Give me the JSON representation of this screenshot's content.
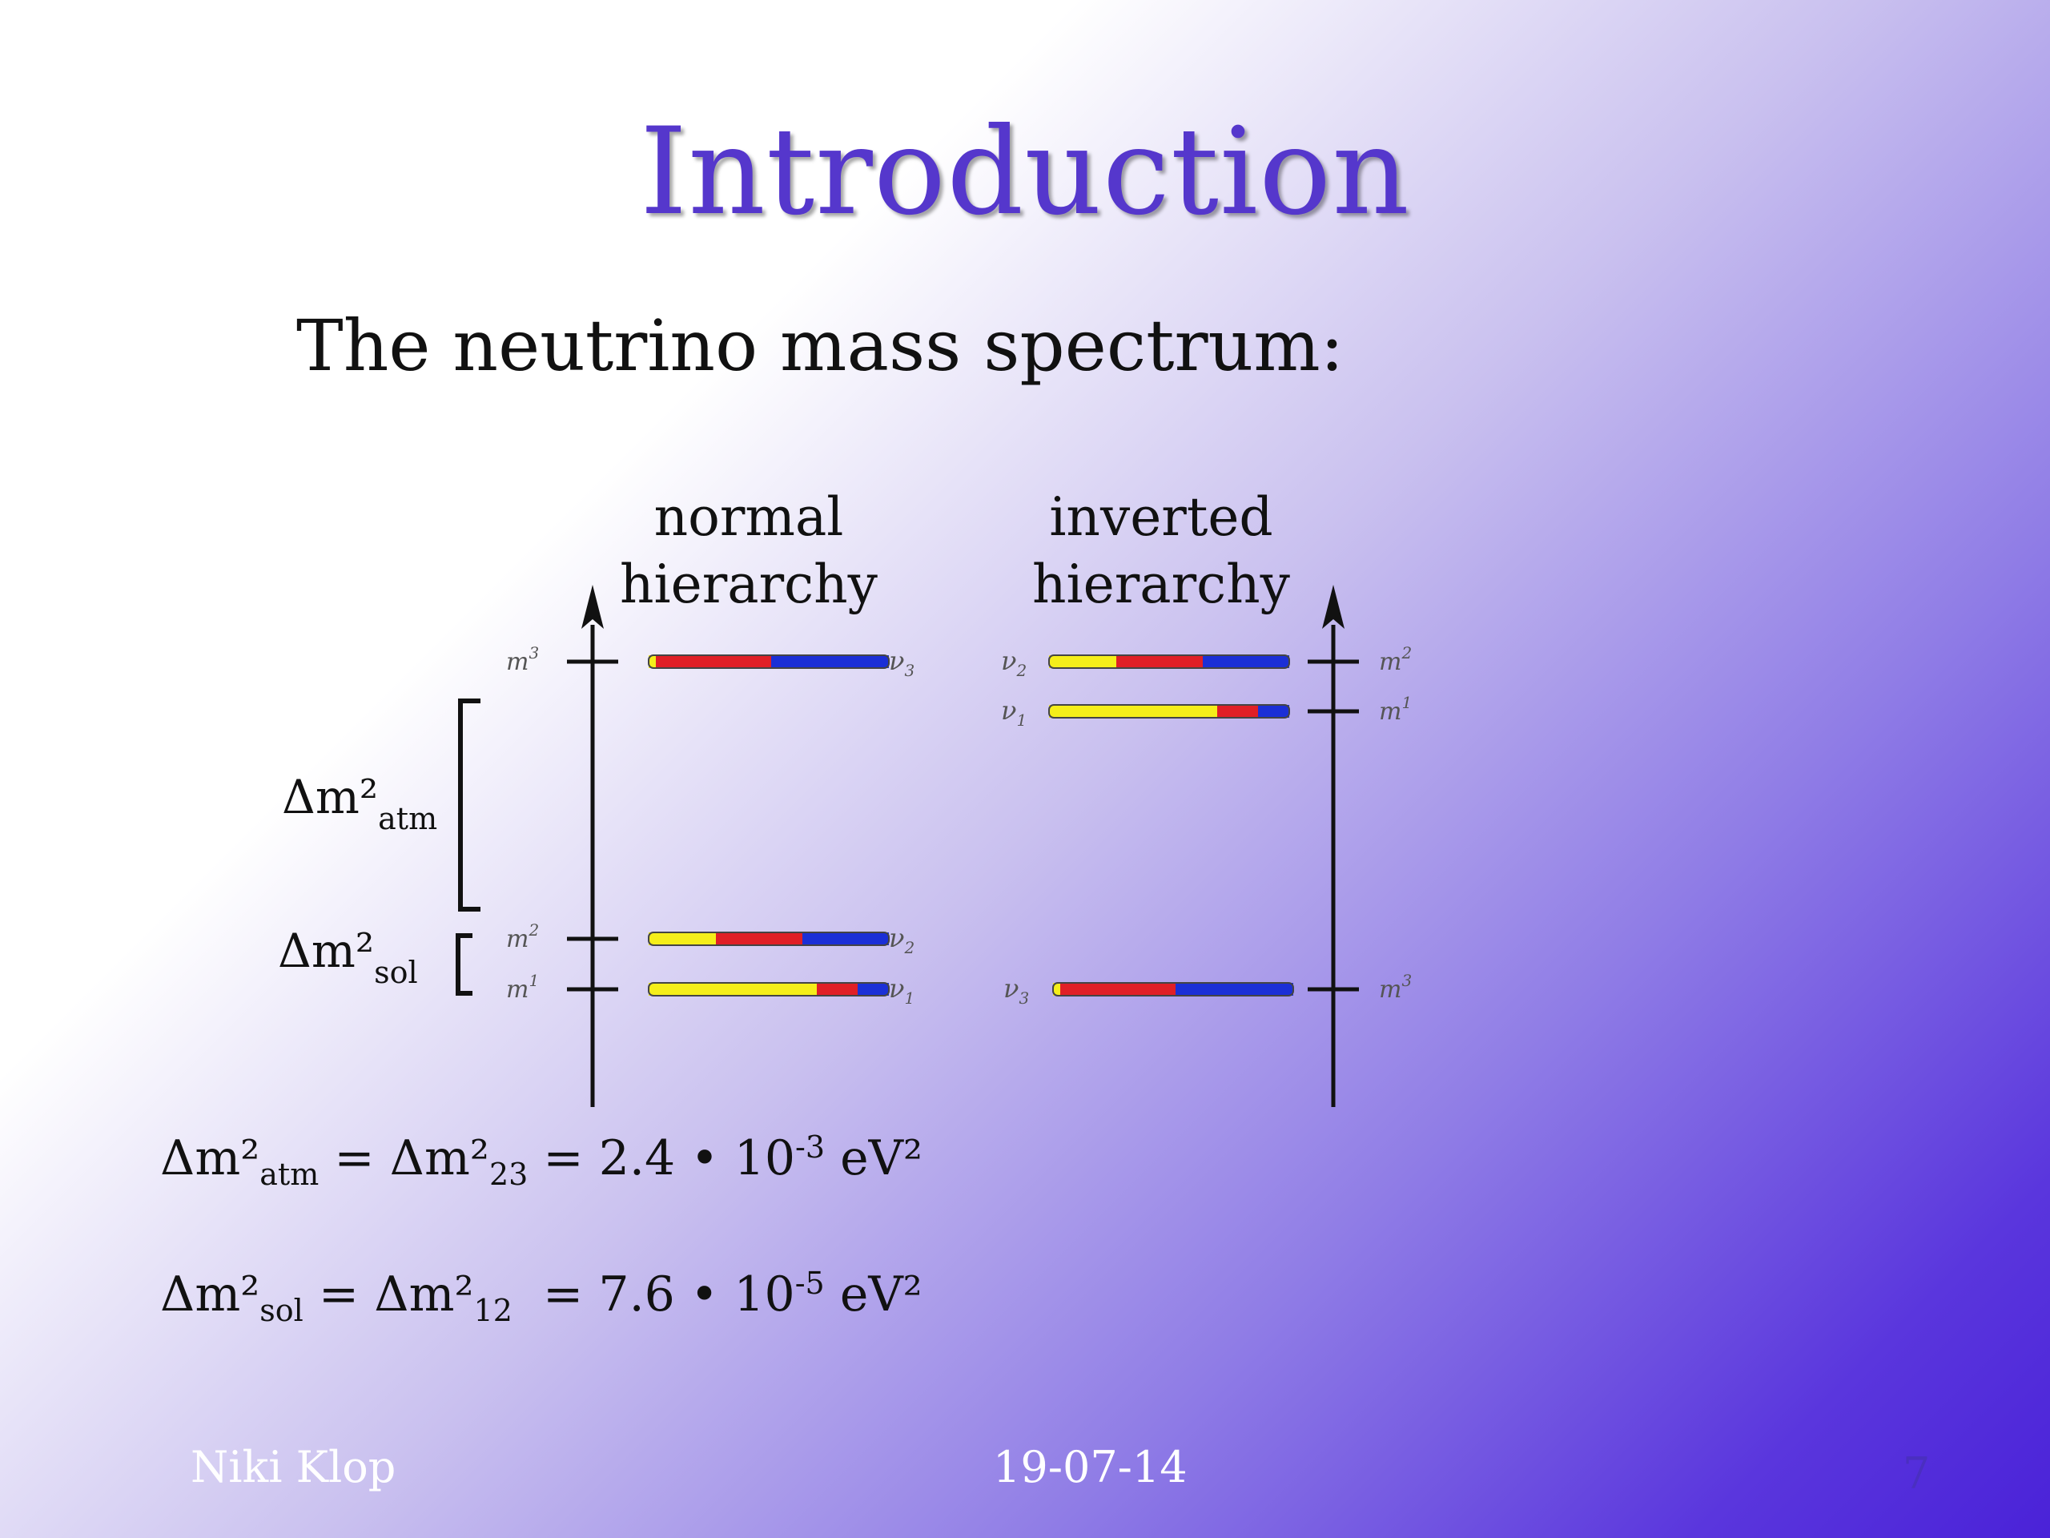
{
  "slide": {
    "title": "Introduction",
    "subtitle": "The neutrino mass spectrum:",
    "footer": {
      "author": "Niki Klop",
      "date": "19-07-14",
      "page_number": "7"
    }
  },
  "diagram": {
    "normal": {
      "heading_line1": "normal",
      "heading_line2": "hierarchy",
      "levels": [
        {
          "mass_label": "m",
          "mass_index": "3",
          "nu_label": "ν",
          "nu_index": "3",
          "mix": {
            "yellow": 0.03,
            "red": 0.48,
            "blue": 0.49
          }
        },
        {
          "mass_label": "m",
          "mass_index": "2",
          "nu_label": "ν",
          "nu_index": "2",
          "mix": {
            "yellow": 0.28,
            "red": 0.36,
            "blue": 0.36
          }
        },
        {
          "mass_label": "m",
          "mass_index": "1",
          "nu_label": "ν",
          "nu_index": "1",
          "mix": {
            "yellow": 0.7,
            "red": 0.17,
            "blue": 0.13
          }
        }
      ],
      "atm_label": "Δm²",
      "atm_sub": "atm",
      "sol_label": "Δm²",
      "sol_sub": "sol"
    },
    "inverted": {
      "heading_line1": "inverted",
      "heading_line2": "hierarchy",
      "levels": [
        {
          "mass_label": "m",
          "mass_index": "2",
          "nu_label": "ν",
          "nu_index": "2",
          "mix": {
            "yellow": 0.28,
            "red": 0.36,
            "blue": 0.36
          }
        },
        {
          "mass_label": "m",
          "mass_index": "1",
          "nu_label": "ν",
          "nu_index": "1",
          "mix": {
            "yellow": 0.7,
            "red": 0.17,
            "blue": 0.13
          }
        },
        {
          "mass_label": "m",
          "mass_index": "3",
          "nu_label": "ν",
          "nu_index": "3",
          "mix": {
            "yellow": 0.03,
            "red": 0.48,
            "blue": 0.49
          }
        }
      ]
    },
    "colors": {
      "yellow": "#f5ee1a",
      "red": "#e01f26",
      "blue": "#1b2fd6"
    }
  },
  "equations": [
    {
      "lhs_base": "Δm²",
      "lhs_sub": "atm",
      "mid_base": "Δm²",
      "mid_sub": "23",
      "value": "2.4 • 10",
      "exponent": "-3",
      "unit": "eV²"
    },
    {
      "lhs_base": "Δm²",
      "lhs_sub": "sol",
      "mid_base": "Δm²",
      "mid_sub": "12",
      "value": "7.6 • 10",
      "exponent": "-5",
      "unit": "eV²"
    }
  ]
}
